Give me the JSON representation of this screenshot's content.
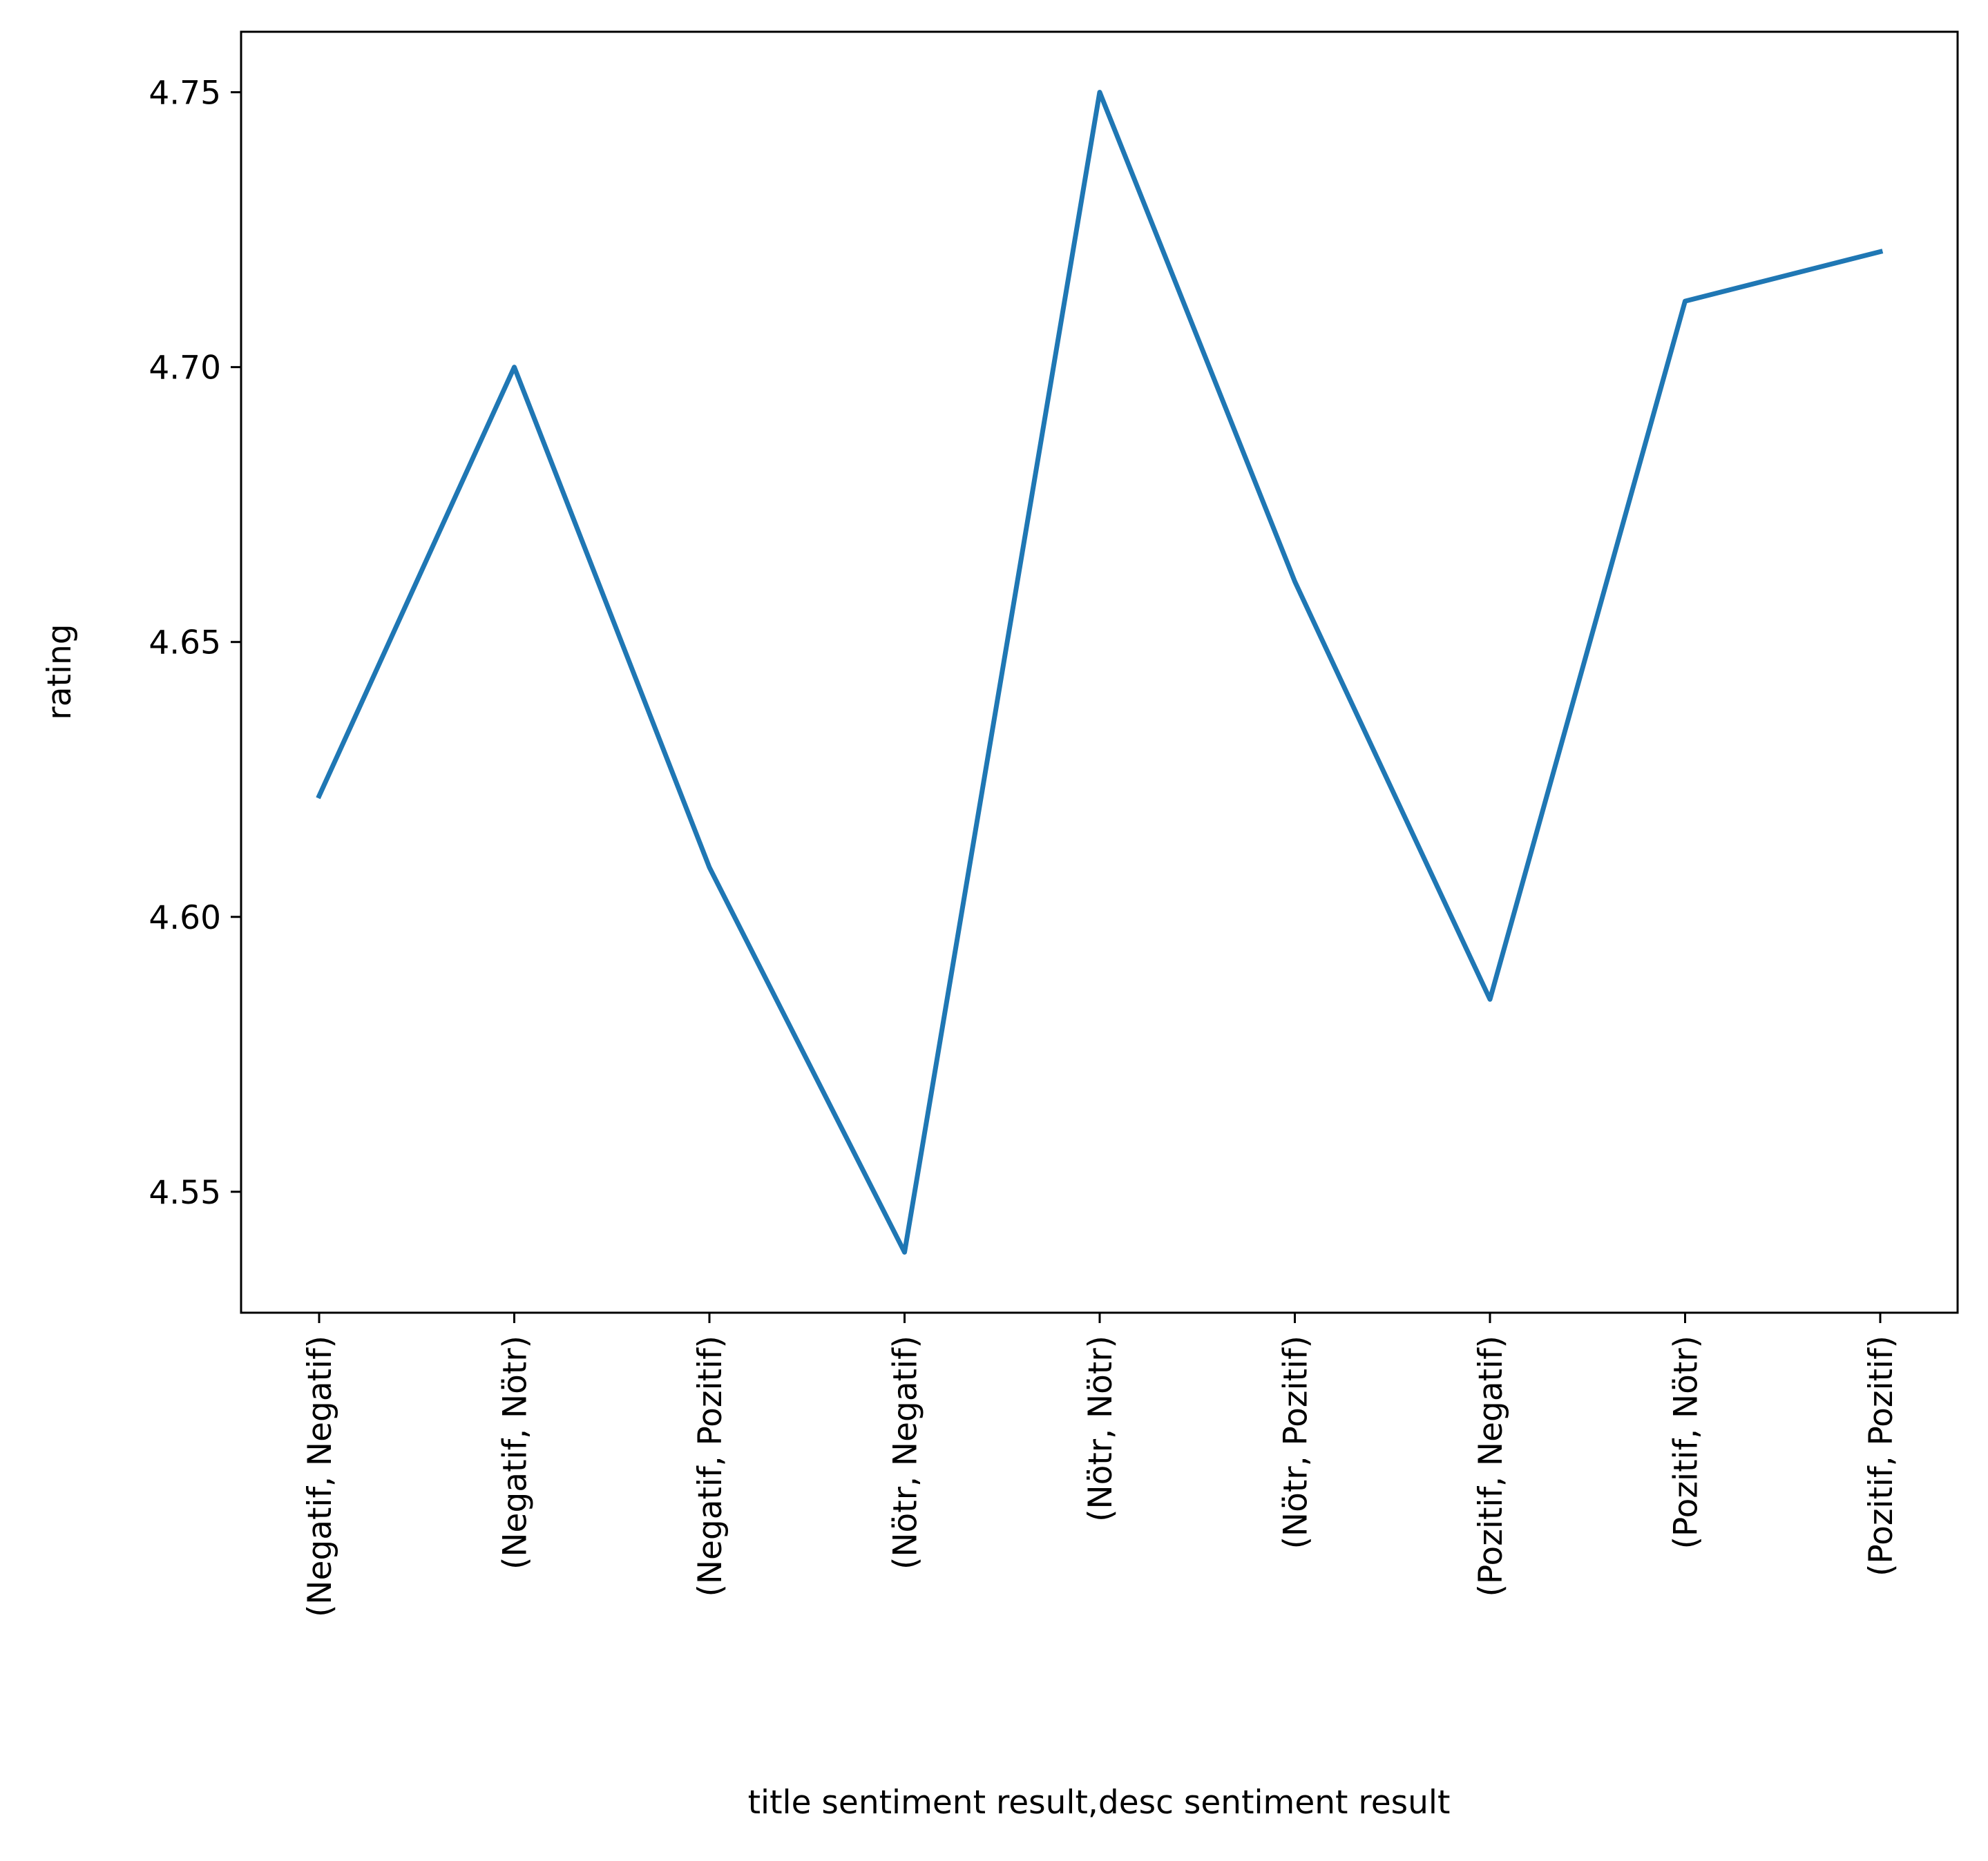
{
  "chart_data": {
    "type": "line",
    "categories": [
      "(Negatif, Negatif)",
      "(Negatif, Nötr)",
      "(Negatif, Pozitif)",
      "(Nötr, Negatif)",
      "(Nötr, Nötr)",
      "(Nötr, Pozitif)",
      "(Pozitif, Negatif)",
      "(Pozitif, Nötr)",
      "(Pozitif, Pozitif)"
    ],
    "values": [
      4.622,
      4.7,
      4.609,
      4.539,
      4.75,
      4.661,
      4.585,
      4.712,
      4.721
    ],
    "xlabel": "title sentiment result,desc sentiment result",
    "ylabel": "rating",
    "ylim": [
      4.528,
      4.761
    ],
    "yticks": [
      "4.55",
      "4.60",
      "4.65",
      "4.70",
      "4.75"
    ],
    "ytick_values": [
      4.55,
      4.6,
      4.65,
      4.7,
      4.75
    ],
    "grid": false,
    "line_color": "#1f77b4"
  }
}
